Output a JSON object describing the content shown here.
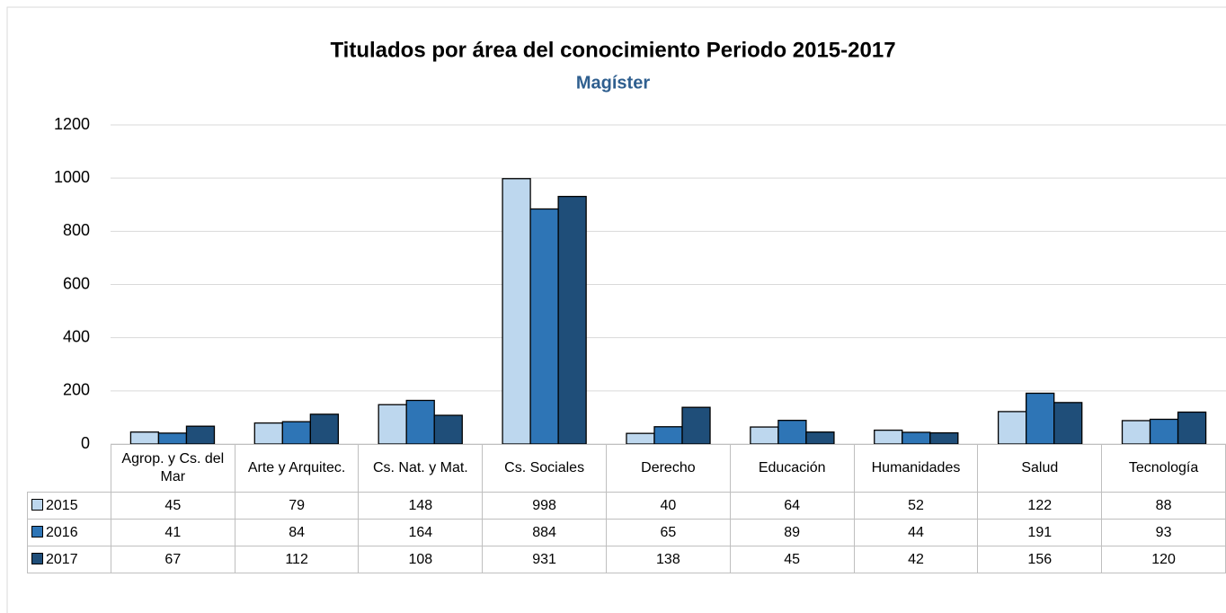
{
  "chart_data": {
    "type": "bar",
    "title": "Titulados por área del conocimiento Periodo 2015-2017",
    "subtitle": "Magíster",
    "categories": [
      "Agrop. y Cs. del Mar",
      "Arte y Arquitec.",
      "Cs. Nat. y Mat.",
      "Cs. Sociales",
      "Derecho",
      "Educación",
      "Humanidades",
      "Salud",
      "Tecnología"
    ],
    "series": [
      {
        "name": "2015",
        "color": "#bdd7ee",
        "values": [
          45,
          79,
          148,
          998,
          40,
          64,
          52,
          122,
          88
        ]
      },
      {
        "name": "2016",
        "color": "#2e75b6",
        "values": [
          41,
          84,
          164,
          884,
          65,
          89,
          44,
          191,
          93
        ]
      },
      {
        "name": "2017",
        "color": "#1f4e79",
        "values": [
          67,
          112,
          108,
          931,
          138,
          45,
          42,
          156,
          120
        ]
      }
    ],
    "ylim": [
      0,
      1200
    ],
    "yticks": [
      0,
      200,
      400,
      600,
      800,
      1000,
      1200
    ],
    "grid": true
  }
}
